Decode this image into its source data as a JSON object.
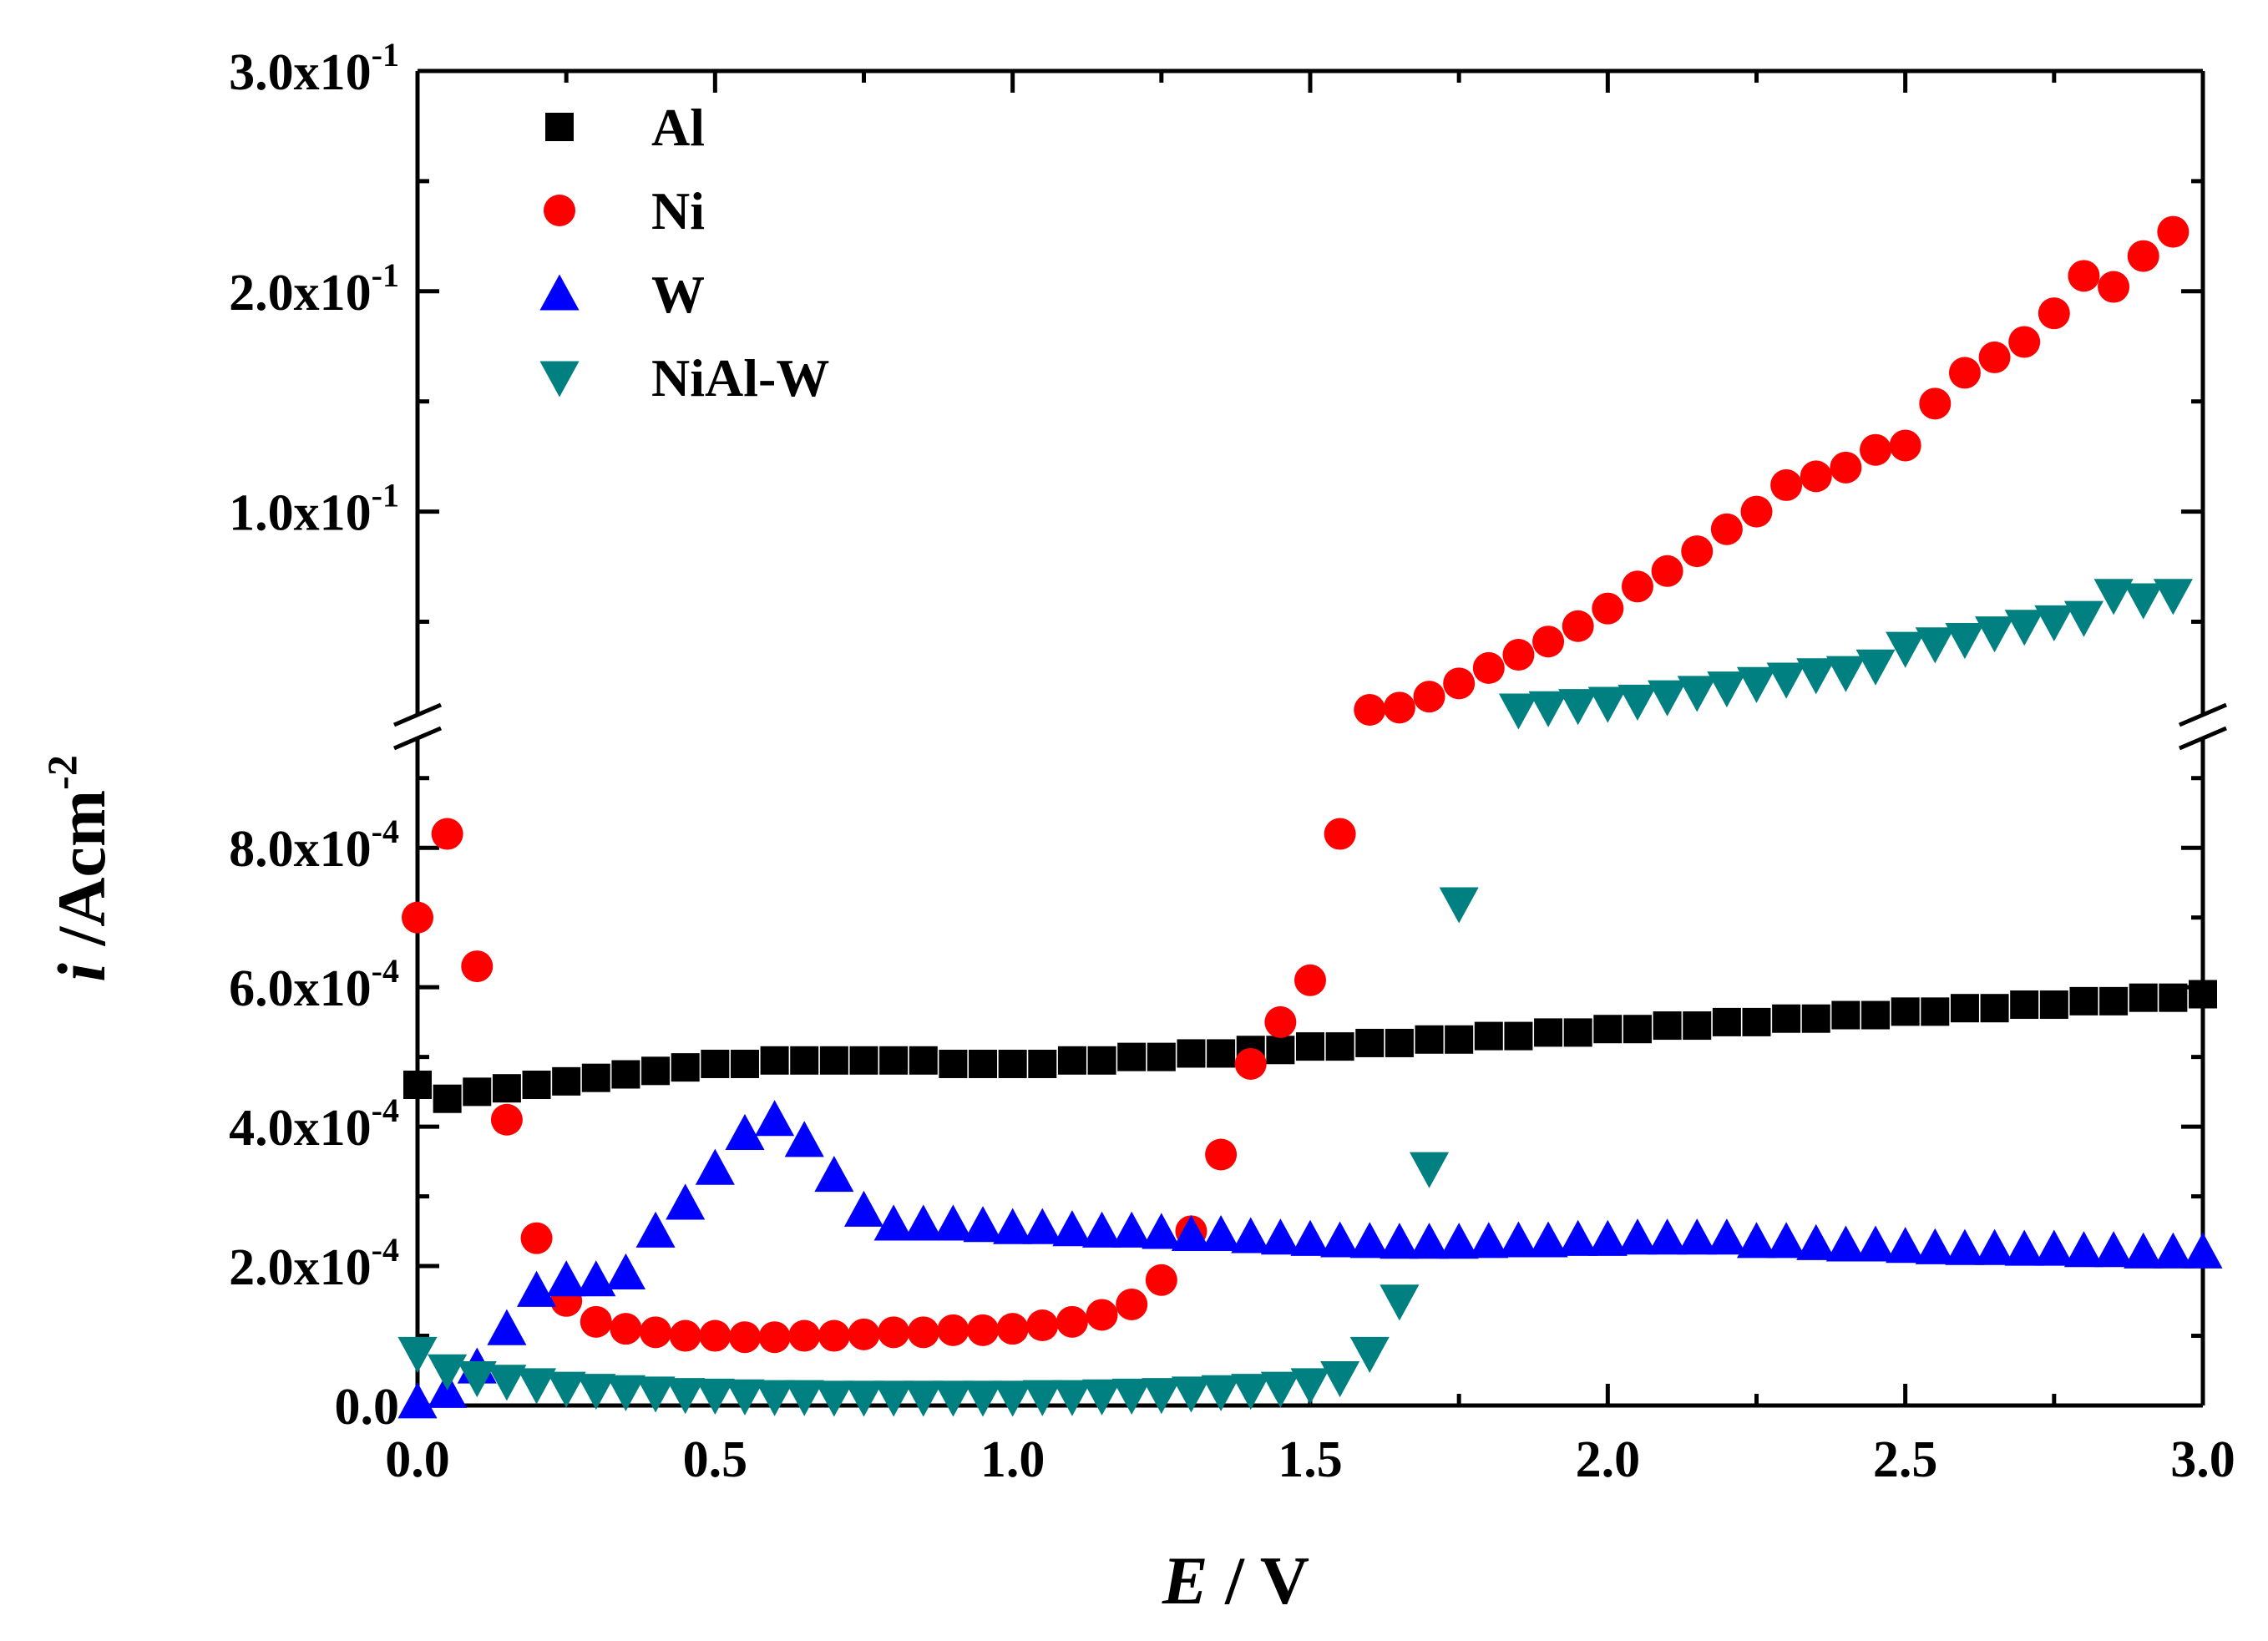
{
  "chart_data": {
    "type": "scatter",
    "xlabel_var": "E",
    "xlabel_unit": " / V",
    "ylabel_var": "i",
    "ylabel_unit": " /Acm",
    "ylabel_exp": "-2",
    "x_ticks": [
      "0.0",
      "0.5",
      "1.0",
      "1.5",
      "2.0",
      "2.5",
      "3.0"
    ],
    "x_range": [
      0,
      3
    ],
    "y_axis_break": true,
    "lower_panel": {
      "range": [
        0,
        0.00095
      ],
      "ticks": [
        {
          "value": 0.0,
          "mant": "0.0",
          "exp": ""
        },
        {
          "value": 0.0002,
          "mant": "2.0x10",
          "exp": "-4"
        },
        {
          "value": 0.0004,
          "mant": "4.0x10",
          "exp": "-4"
        },
        {
          "value": 0.0006,
          "mant": "6.0x10",
          "exp": "-4"
        },
        {
          "value": 0.0008,
          "mant": "8.0x10",
          "exp": "-4"
        }
      ]
    },
    "upper_panel": {
      "range": [
        0.01,
        0.3
      ],
      "ticks": [
        {
          "value": 0.1,
          "mant": "1.0x10",
          "exp": "-1"
        },
        {
          "value": 0.2,
          "mant": "2.0x10",
          "exp": "-1"
        },
        {
          "value": 0.3,
          "mant": "3.0x10",
          "exp": "-1"
        }
      ]
    },
    "legend_position": "top-left",
    "series": [
      {
        "name": "Al",
        "marker": "square",
        "color": "#000000",
        "points": [
          [
            0.0,
            0.00046
          ],
          [
            0.05,
            0.00044
          ],
          [
            0.1,
            0.00045
          ],
          [
            0.15,
            0.000455
          ],
          [
            0.2,
            0.00046
          ],
          [
            0.25,
            0.000465
          ],
          [
            0.3,
            0.00047
          ],
          [
            0.35,
            0.000475
          ],
          [
            0.4,
            0.00048
          ],
          [
            0.45,
            0.000485
          ],
          [
            0.5,
            0.00049
          ],
          [
            0.55,
            0.00049
          ],
          [
            0.6,
            0.000495
          ],
          [
            0.65,
            0.000495
          ],
          [
            0.7,
            0.000495
          ],
          [
            0.75,
            0.000495
          ],
          [
            0.8,
            0.000495
          ],
          [
            0.85,
            0.000495
          ],
          [
            0.9,
            0.00049
          ],
          [
            0.95,
            0.00049
          ],
          [
            1.0,
            0.00049
          ],
          [
            1.05,
            0.00049
          ],
          [
            1.1,
            0.000495
          ],
          [
            1.15,
            0.000495
          ],
          [
            1.2,
            0.0005
          ],
          [
            1.25,
            0.0005
          ],
          [
            1.3,
            0.000505
          ],
          [
            1.35,
            0.000505
          ],
          [
            1.4,
            0.00051
          ],
          [
            1.45,
            0.00051
          ],
          [
            1.5,
            0.000515
          ],
          [
            1.55,
            0.000515
          ],
          [
            1.6,
            0.00052
          ],
          [
            1.65,
            0.00052
          ],
          [
            1.7,
            0.000525
          ],
          [
            1.75,
            0.000525
          ],
          [
            1.8,
            0.00053
          ],
          [
            1.85,
            0.00053
          ],
          [
            1.9,
            0.000535
          ],
          [
            1.95,
            0.000535
          ],
          [
            2.0,
            0.00054
          ],
          [
            2.05,
            0.00054
          ],
          [
            2.1,
            0.000545
          ],
          [
            2.15,
            0.000545
          ],
          [
            2.2,
            0.00055
          ],
          [
            2.25,
            0.00055
          ],
          [
            2.3,
            0.000555
          ],
          [
            2.35,
            0.000555
          ],
          [
            2.4,
            0.00056
          ],
          [
            2.45,
            0.00056
          ],
          [
            2.5,
            0.000565
          ],
          [
            2.55,
            0.000565
          ],
          [
            2.6,
            0.00057
          ],
          [
            2.65,
            0.00057
          ],
          [
            2.7,
            0.000575
          ],
          [
            2.75,
            0.000575
          ],
          [
            2.8,
            0.00058
          ],
          [
            2.85,
            0.00058
          ],
          [
            2.9,
            0.000585
          ],
          [
            2.95,
            0.000585
          ],
          [
            3.0,
            0.00059
          ]
        ]
      },
      {
        "name": "Ni",
        "marker": "circle",
        "color": "#ff0000",
        "points": [
          [
            0.0,
            0.0007
          ],
          [
            0.05,
            0.00082
          ],
          [
            0.1,
            0.00063
          ],
          [
            0.15,
            0.00041
          ],
          [
            0.2,
            0.00024
          ],
          [
            0.25,
            0.00015
          ],
          [
            0.3,
            0.00012
          ],
          [
            0.35,
            0.00011
          ],
          [
            0.4,
            0.000105
          ],
          [
            0.45,
            0.0001
          ],
          [
            0.5,
            0.0001
          ],
          [
            0.55,
            9.8e-05
          ],
          [
            0.6,
            9.8e-05
          ],
          [
            0.65,
            0.0001
          ],
          [
            0.7,
            0.0001
          ],
          [
            0.75,
            0.000102
          ],
          [
            0.8,
            0.000105
          ],
          [
            0.85,
            0.000105
          ],
          [
            0.9,
            0.000108
          ],
          [
            0.95,
            0.000108
          ],
          [
            1.0,
            0.00011
          ],
          [
            1.05,
            0.000115
          ],
          [
            1.1,
            0.00012
          ],
          [
            1.15,
            0.00013
          ],
          [
            1.2,
            0.000145
          ],
          [
            1.25,
            0.00018
          ],
          [
            1.3,
            0.00025
          ],
          [
            1.35,
            0.00036
          ],
          [
            1.4,
            0.00049
          ],
          [
            1.45,
            0.00055
          ],
          [
            1.5,
            0.00061
          ],
          [
            1.55,
            0.00082
          ],
          [
            1.6,
            0.01
          ],
          [
            1.65,
            0.011
          ],
          [
            1.7,
            0.016
          ],
          [
            1.75,
            0.022
          ],
          [
            1.8,
            0.029
          ],
          [
            1.85,
            0.035
          ],
          [
            1.9,
            0.041
          ],
          [
            1.95,
            0.048
          ],
          [
            2.0,
            0.056
          ],
          [
            2.05,
            0.066
          ],
          [
            2.1,
            0.073
          ],
          [
            2.15,
            0.082
          ],
          [
            2.2,
            0.092
          ],
          [
            2.25,
            0.1
          ],
          [
            2.3,
            0.112
          ],
          [
            2.35,
            0.116
          ],
          [
            2.4,
            0.12
          ],
          [
            2.45,
            0.128
          ],
          [
            2.5,
            0.13
          ],
          [
            2.55,
            0.149
          ],
          [
            2.6,
            0.163
          ],
          [
            2.65,
            0.17
          ],
          [
            2.7,
            0.177
          ],
          [
            2.75,
            0.19
          ],
          [
            2.8,
            0.207
          ],
          [
            2.85,
            0.202
          ],
          [
            2.9,
            0.216
          ],
          [
            2.95,
            0.227
          ]
        ]
      },
      {
        "name": "W",
        "marker": "triangle-up",
        "color": "#0000ff",
        "points": [
          [
            0.0,
            5e-06
          ],
          [
            0.05,
            2e-05
          ],
          [
            0.1,
            5.5e-05
          ],
          [
            0.15,
            0.00011
          ],
          [
            0.2,
            0.000165
          ],
          [
            0.25,
            0.00018
          ],
          [
            0.3,
            0.00018
          ],
          [
            0.35,
            0.00019
          ],
          [
            0.4,
            0.00025
          ],
          [
            0.45,
            0.00029
          ],
          [
            0.5,
            0.00034
          ],
          [
            0.55,
            0.00039
          ],
          [
            0.6,
            0.00041
          ],
          [
            0.65,
            0.00038
          ],
          [
            0.7,
            0.00033
          ],
          [
            0.75,
            0.00028
          ],
          [
            0.8,
            0.00026
          ],
          [
            0.85,
            0.00026
          ],
          [
            0.9,
            0.00026
          ],
          [
            0.95,
            0.000258
          ],
          [
            1.0,
            0.000255
          ],
          [
            1.05,
            0.000255
          ],
          [
            1.1,
            0.000252
          ],
          [
            1.15,
            0.00025
          ],
          [
            1.2,
            0.00025
          ],
          [
            1.25,
            0.000248
          ],
          [
            1.3,
            0.000245
          ],
          [
            1.35,
            0.000245
          ],
          [
            1.4,
            0.000242
          ],
          [
            1.45,
            0.00024
          ],
          [
            1.5,
            0.000238
          ],
          [
            1.55,
            0.000236
          ],
          [
            1.6,
            0.000235
          ],
          [
            1.65,
            0.000234
          ],
          [
            1.7,
            0.000234
          ],
          [
            1.75,
            0.000234
          ],
          [
            1.8,
            0.000235
          ],
          [
            1.85,
            0.000236
          ],
          [
            1.9,
            0.000236
          ],
          [
            1.95,
            0.000238
          ],
          [
            2.0,
            0.000238
          ],
          [
            2.05,
            0.00024
          ],
          [
            2.1,
            0.00024
          ],
          [
            2.15,
            0.00024
          ],
          [
            2.2,
            0.00024
          ],
          [
            2.25,
            0.000235
          ],
          [
            2.3,
            0.000235
          ],
          [
            2.35,
            0.000232
          ],
          [
            2.4,
            0.00023
          ],
          [
            2.45,
            0.00023
          ],
          [
            2.5,
            0.000228
          ],
          [
            2.55,
            0.000226
          ],
          [
            2.6,
            0.000225
          ],
          [
            2.65,
            0.000225
          ],
          [
            2.7,
            0.000224
          ],
          [
            2.75,
            0.000224
          ],
          [
            2.8,
            0.000222
          ],
          [
            2.85,
            0.000222
          ],
          [
            2.9,
            0.00022
          ],
          [
            2.95,
            0.00022
          ],
          [
            3.0,
            0.00022
          ]
        ]
      },
      {
        "name": "NiAl-W",
        "marker": "triangle-down",
        "color": "#008080",
        "points": [
          [
            0.0,
            7.5e-05
          ],
          [
            0.05,
            5e-05
          ],
          [
            0.1,
            4e-05
          ],
          [
            0.15,
            3.5e-05
          ],
          [
            0.2,
            3e-05
          ],
          [
            0.25,
            2.5e-05
          ],
          [
            0.3,
            2.2e-05
          ],
          [
            0.35,
            2e-05
          ],
          [
            0.4,
            1.8e-05
          ],
          [
            0.45,
            1.6e-05
          ],
          [
            0.5,
            1.5e-05
          ],
          [
            0.55,
            1.4e-05
          ],
          [
            0.6,
            1.3e-05
          ],
          [
            0.65,
            1.3e-05
          ],
          [
            0.7,
            1.2e-05
          ],
          [
            0.75,
            1.2e-05
          ],
          [
            0.8,
            1.2e-05
          ],
          [
            0.85,
            1.2e-05
          ],
          [
            0.9,
            1.2e-05
          ],
          [
            0.95,
            1.2e-05
          ],
          [
            1.0,
            1.2e-05
          ],
          [
            1.05,
            1.3e-05
          ],
          [
            1.1,
            1.3e-05
          ],
          [
            1.15,
            1.4e-05
          ],
          [
            1.2,
            1.5e-05
          ],
          [
            1.25,
            1.6e-05
          ],
          [
            1.3,
            1.8e-05
          ],
          [
            1.35,
            2e-05
          ],
          [
            1.4,
            2.2e-05
          ],
          [
            1.45,
            2.5e-05
          ],
          [
            1.5,
            3e-05
          ],
          [
            1.55,
            4e-05
          ],
          [
            1.6,
            7.5e-05
          ],
          [
            1.65,
            0.00015
          ],
          [
            1.7,
            0.00034
          ],
          [
            1.75,
            0.00072
          ],
          [
            1.85,
            0.01
          ],
          [
            1.9,
            0.011
          ],
          [
            1.95,
            0.012
          ],
          [
            2.0,
            0.013
          ],
          [
            2.05,
            0.014
          ],
          [
            2.1,
            0.016
          ],
          [
            2.15,
            0.018
          ],
          [
            2.2,
            0.02
          ],
          [
            2.25,
            0.022
          ],
          [
            2.3,
            0.024
          ],
          [
            2.35,
            0.026
          ],
          [
            2.4,
            0.027
          ],
          [
            2.45,
            0.03
          ],
          [
            2.5,
            0.038
          ],
          [
            2.55,
            0.04
          ],
          [
            2.6,
            0.042
          ],
          [
            2.65,
            0.045
          ],
          [
            2.7,
            0.048
          ],
          [
            2.75,
            0.05
          ],
          [
            2.8,
            0.052
          ],
          [
            2.85,
            0.062
          ],
          [
            2.9,
            0.06
          ],
          [
            2.95,
            0.062
          ]
        ]
      }
    ]
  }
}
